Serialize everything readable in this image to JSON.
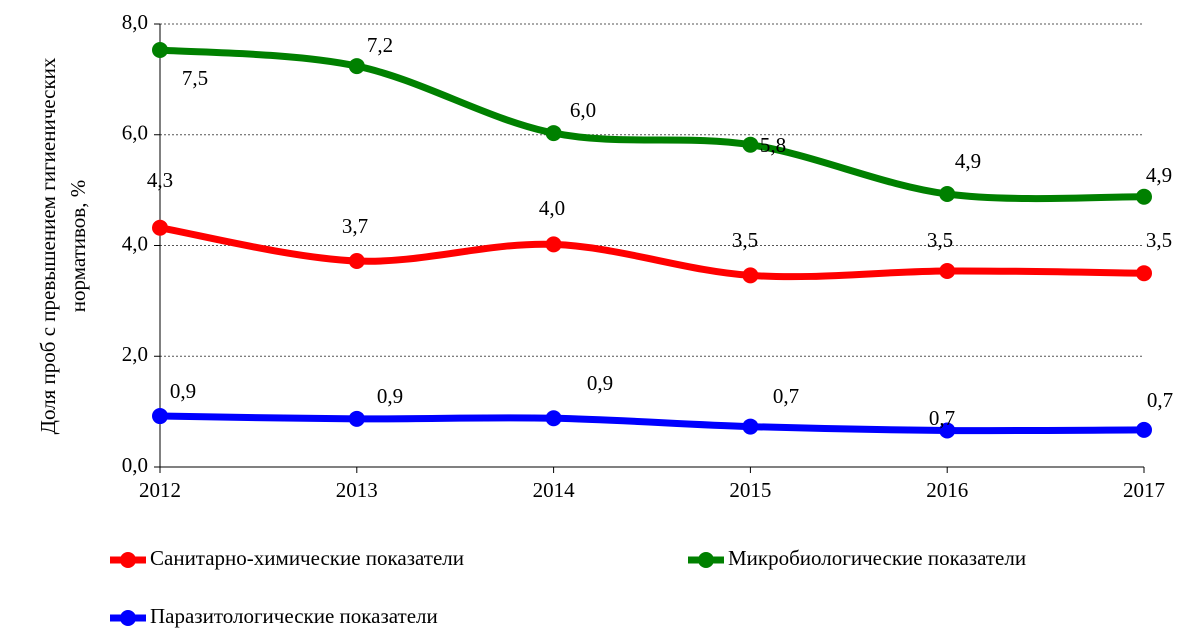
{
  "chart_data": {
    "type": "line",
    "ylabel": [
      "Доля проб с превышением гигиенических",
      "нормативов, %"
    ],
    "categories": [
      "2012",
      "2013",
      "2014",
      "2015",
      "2016",
      "2017"
    ],
    "ylim": [
      0,
      8
    ],
    "yticks": [
      {
        "value": 0,
        "label": "0,0"
      },
      {
        "value": 2,
        "label": "2,0"
      },
      {
        "value": 4,
        "label": "4,0"
      },
      {
        "value": 6,
        "label": "6,0"
      },
      {
        "value": 8,
        "label": "8,0"
      }
    ],
    "grid": true,
    "series": [
      {
        "name": "Санитарно-химические показатели",
        "color": "#ff0000",
        "values": [
          4.32,
          3.72,
          4.02,
          3.46,
          3.54,
          3.5
        ],
        "value_labels": [
          "4,3",
          "3,7",
          "4,0",
          "3,5",
          "3,5",
          "3,5"
        ]
      },
      {
        "name": "Микробиологические показатели",
        "color": "#008000",
        "values": [
          7.53,
          7.24,
          6.03,
          5.82,
          4.93,
          4.88
        ],
        "value_labels": [
          "7,5",
          "7,2",
          "6,0",
          "5,8",
          "4,9",
          "4,9"
        ]
      },
      {
        "name": "Паразитологические показатели",
        "color": "#0000ff",
        "values": [
          0.92,
          0.87,
          0.88,
          0.73,
          0.66,
          0.67
        ],
        "value_labels": [
          "0,9",
          "0,9",
          "0,9",
          "0,7",
          "0,7",
          "0,7"
        ]
      }
    ]
  }
}
